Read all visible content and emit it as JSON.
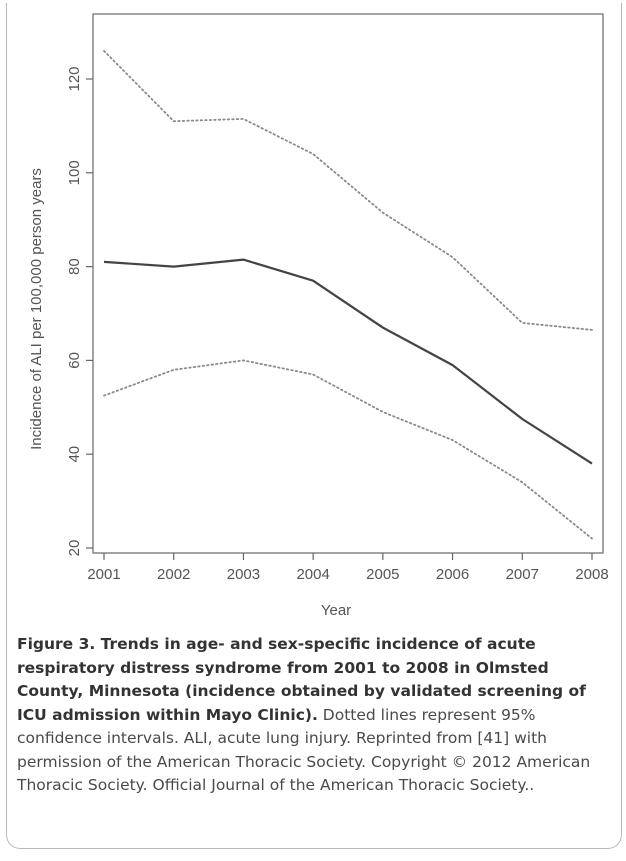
{
  "chart_data": {
    "type": "line",
    "title": "",
    "xlabel": "Year",
    "ylabel": "Incidence of ALI per 100,000 person years",
    "x": [
      2001,
      2002,
      2003,
      2004,
      2005,
      2006,
      2007,
      2008
    ],
    "xticks": [
      "2001",
      "2002",
      "2003",
      "2004",
      "2005",
      "2006",
      "2007",
      "2008"
    ],
    "yticks": [
      "20",
      "40",
      "60",
      "80",
      "100",
      "120"
    ],
    "ylim": [
      20,
      126
    ],
    "grid": false,
    "series": [
      {
        "style": "solid",
        "color": "#444444",
        "values": [
          81,
          80,
          81.5,
          77,
          67,
          59,
          47.5,
          38
        ]
      },
      {
        "style": "dotted",
        "color": "#8a8a8a",
        "values": [
          126,
          111,
          111.5,
          104,
          91.5,
          82,
          68,
          66.5
        ]
      },
      {
        "style": "dotted",
        "color": "#8a8a8a",
        "values": [
          52.5,
          58,
          60,
          57,
          49,
          43,
          34,
          22
        ]
      }
    ]
  },
  "caption": {
    "title": "Figure 3. Trends in age- and sex-specific incidence of acute respiratory distress syndrome from 2001 to 2008 in Olmsted County, Minnesota (incidence obtained by validated screening of ICU admission within Mayo Clinic).",
    "body": " Dotted lines represent 95% confidence intervals. ALI, acute lung injury. Reprinted from [41] with permission of the American Thoracic Society. Copyright © 2012 American Thoracic Society. Official Journal of the American Thoracic Society.."
  }
}
